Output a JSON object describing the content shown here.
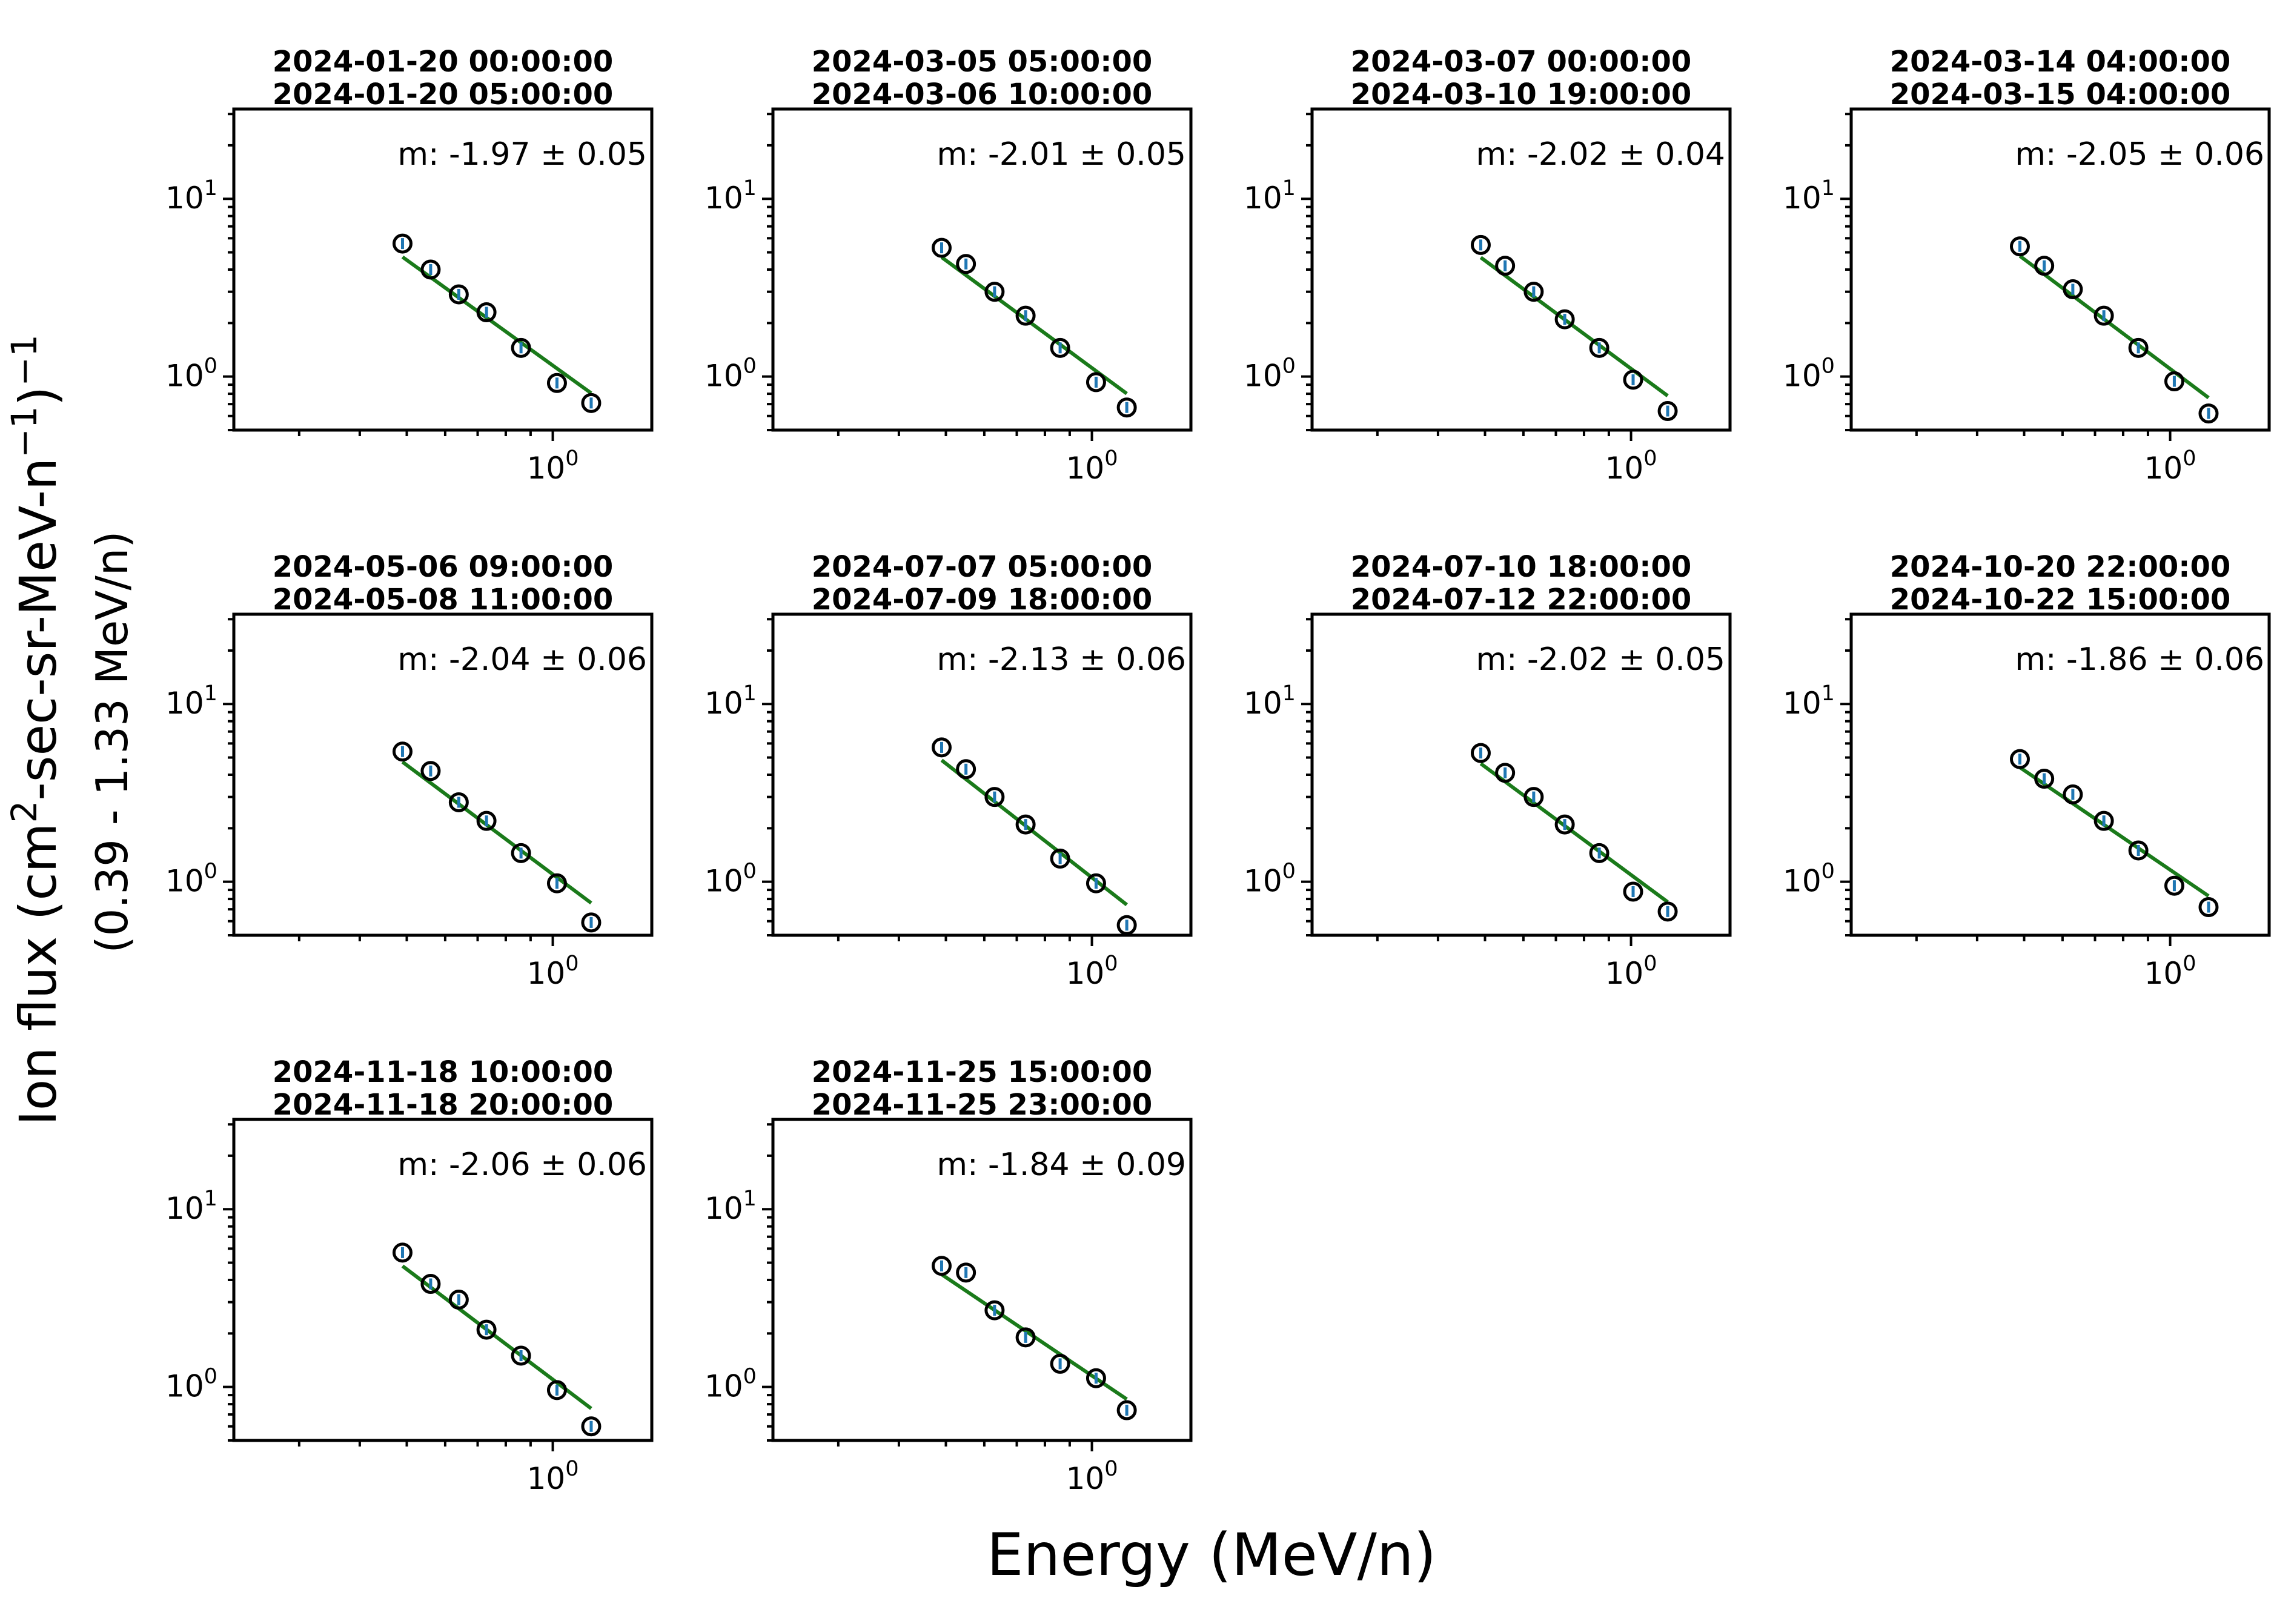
{
  "figure": {
    "ylabel_line1_prefix": "Ion flux (cm",
    "ylabel_sup1": "2",
    "ylabel_mid": "-sec-sr-MeV-n",
    "ylabel_sup2": "−1",
    "ylabel_close": ")",
    "ylabel_sup3": "−1",
    "ylabel_line2": "(0.39 - 1.33 MeV/n)",
    "xlabel": "Energy (MeV/n)"
  },
  "colors": {
    "fit": "#1a7a1a",
    "marker": "#000000",
    "errorbar": "#1f77b4"
  },
  "chart_data": [
    {
      "type": "scatter",
      "title_line1": "2024-01-20 00:00:00",
      "title_line2": "2024-01-20 05:00:00",
      "annotation": "m: -1.97 ± 0.05",
      "slope": -1.97,
      "slope_err": 0.05,
      "x": [
        0.49,
        0.56,
        0.64,
        0.73,
        0.86,
        1.02,
        1.2
      ],
      "y": [
        5.6,
        4.0,
        2.9,
        2.3,
        1.45,
        0.92,
        0.71
      ],
      "xscale": "log",
      "yscale": "log",
      "xlim": [
        0.22,
        1.6
      ],
      "ylim": [
        0.5,
        32
      ],
      "xtick_label": "10",
      "xtick_exp": "0",
      "ytick_labels": [
        {
          "base": "10",
          "exp": "0"
        },
        {
          "base": "10",
          "exp": "1"
        }
      ]
    },
    {
      "type": "scatter",
      "title_line1": "2024-03-05 05:00:00",
      "title_line2": "2024-03-06 10:00:00",
      "annotation": "m: -2.01 ± 0.05",
      "slope": -2.01,
      "slope_err": 0.05,
      "x": [
        0.49,
        0.55,
        0.63,
        0.73,
        0.86,
        1.02,
        1.18
      ],
      "y": [
        5.3,
        4.3,
        3.0,
        2.2,
        1.45,
        0.93,
        0.67
      ],
      "xscale": "log",
      "yscale": "log",
      "xlim": [
        0.22,
        1.6
      ],
      "ylim": [
        0.5,
        32
      ],
      "xtick_label": "10",
      "xtick_exp": "0",
      "ytick_labels": [
        {
          "base": "10",
          "exp": "0"
        },
        {
          "base": "10",
          "exp": "1"
        }
      ]
    },
    {
      "type": "scatter",
      "title_line1": "2024-03-07 00:00:00",
      "title_line2": "2024-03-10 19:00:00",
      "annotation": "m: -2.02 ± 0.04",
      "slope": -2.02,
      "slope_err": 0.04,
      "x": [
        0.49,
        0.55,
        0.63,
        0.73,
        0.86,
        1.01,
        1.19
      ],
      "y": [
        5.5,
        4.2,
        3.0,
        2.1,
        1.45,
        0.96,
        0.64
      ],
      "xscale": "log",
      "yscale": "log",
      "xlim": [
        0.22,
        1.6
      ],
      "ylim": [
        0.5,
        32
      ],
      "xtick_label": "10",
      "xtick_exp": "0",
      "ytick_labels": [
        {
          "base": "10",
          "exp": "0"
        },
        {
          "base": "10",
          "exp": "1"
        }
      ]
    },
    {
      "type": "scatter",
      "title_line1": "2024-03-14 04:00:00",
      "title_line2": "2024-03-15 04:00:00",
      "annotation": "m: -2.05 ± 0.06",
      "slope": -2.05,
      "slope_err": 0.06,
      "x": [
        0.49,
        0.55,
        0.63,
        0.73,
        0.86,
        1.02,
        1.2
      ],
      "y": [
        5.4,
        4.2,
        3.1,
        2.2,
        1.45,
        0.94,
        0.62
      ],
      "xscale": "log",
      "yscale": "log",
      "xlim": [
        0.22,
        1.6
      ],
      "ylim": [
        0.5,
        32
      ],
      "xtick_label": "10",
      "xtick_exp": "0",
      "ytick_labels": [
        {
          "base": "10",
          "exp": "0"
        },
        {
          "base": "10",
          "exp": "1"
        }
      ]
    },
    {
      "type": "scatter",
      "title_line1": "2024-05-06 09:00:00",
      "title_line2": "2024-05-08 11:00:00",
      "annotation": "m: -2.04 ± 0.06",
      "slope": -2.04,
      "slope_err": 0.06,
      "x": [
        0.49,
        0.56,
        0.64,
        0.73,
        0.86,
        1.02,
        1.2
      ],
      "y": [
        5.4,
        4.2,
        2.8,
        2.2,
        1.45,
        0.98,
        0.59
      ],
      "xscale": "log",
      "yscale": "log",
      "xlim": [
        0.22,
        1.6
      ],
      "ylim": [
        0.5,
        32
      ],
      "xtick_label": "10",
      "xtick_exp": "0",
      "ytick_labels": [
        {
          "base": "10",
          "exp": "0"
        },
        {
          "base": "10",
          "exp": "1"
        }
      ]
    },
    {
      "type": "scatter",
      "title_line1": "2024-07-07 05:00:00",
      "title_line2": "2024-07-09 18:00:00",
      "annotation": "m: -2.13 ± 0.06",
      "slope": -2.13,
      "slope_err": 0.06,
      "x": [
        0.49,
        0.55,
        0.63,
        0.73,
        0.86,
        1.02,
        1.18
      ],
      "y": [
        5.7,
        4.3,
        3.0,
        2.1,
        1.35,
        0.98,
        0.57
      ],
      "xscale": "log",
      "yscale": "log",
      "xlim": [
        0.22,
        1.6
      ],
      "ylim": [
        0.5,
        32
      ],
      "xtick_label": "10",
      "xtick_exp": "0",
      "ytick_labels": [
        {
          "base": "10",
          "exp": "0"
        },
        {
          "base": "10",
          "exp": "1"
        }
      ]
    },
    {
      "type": "scatter",
      "title_line1": "2024-07-10 18:00:00",
      "title_line2": "2024-07-12 22:00:00",
      "annotation": "m: -2.02 ± 0.05",
      "slope": -2.02,
      "slope_err": 0.05,
      "x": [
        0.49,
        0.55,
        0.63,
        0.73,
        0.86,
        1.01,
        1.19
      ],
      "y": [
        5.3,
        4.1,
        3.0,
        2.1,
        1.45,
        0.88,
        0.68
      ],
      "xscale": "log",
      "yscale": "log",
      "xlim": [
        0.22,
        1.6
      ],
      "ylim": [
        0.5,
        32
      ],
      "xtick_label": "10",
      "xtick_exp": "0",
      "ytick_labels": [
        {
          "base": "10",
          "exp": "0"
        },
        {
          "base": "10",
          "exp": "1"
        }
      ]
    },
    {
      "type": "scatter",
      "title_line1": "2024-10-20 22:00:00",
      "title_line2": "2024-10-22 15:00:00",
      "annotation": "m: -1.86 ± 0.06",
      "slope": -1.86,
      "slope_err": 0.06,
      "x": [
        0.49,
        0.55,
        0.63,
        0.73,
        0.86,
        1.02,
        1.2
      ],
      "y": [
        4.9,
        3.8,
        3.1,
        2.2,
        1.5,
        0.95,
        0.72
      ],
      "xscale": "log",
      "yscale": "log",
      "xlim": [
        0.22,
        1.6
      ],
      "ylim": [
        0.5,
        32
      ],
      "xtick_label": "10",
      "xtick_exp": "0",
      "ytick_labels": [
        {
          "base": "10",
          "exp": "0"
        },
        {
          "base": "10",
          "exp": "1"
        }
      ]
    },
    {
      "type": "scatter",
      "title_line1": "2024-11-18 10:00:00",
      "title_line2": "2024-11-18 20:00:00",
      "annotation": "m: -2.06 ± 0.06",
      "slope": -2.06,
      "slope_err": 0.06,
      "x": [
        0.49,
        0.56,
        0.64,
        0.73,
        0.86,
        1.02,
        1.2
      ],
      "y": [
        5.7,
        3.8,
        3.1,
        2.1,
        1.5,
        0.96,
        0.6
      ],
      "xscale": "log",
      "yscale": "log",
      "xlim": [
        0.22,
        1.6
      ],
      "ylim": [
        0.5,
        32
      ],
      "xtick_label": "10",
      "xtick_exp": "0",
      "ytick_labels": [
        {
          "base": "10",
          "exp": "0"
        },
        {
          "base": "10",
          "exp": "1"
        }
      ]
    },
    {
      "type": "scatter",
      "title_line1": "2024-11-25 15:00:00",
      "title_line2": "2024-11-25 23:00:00",
      "annotation": "m: -1.84 ± 0.09",
      "slope": -1.84,
      "slope_err": 0.09,
      "x": [
        0.49,
        0.55,
        0.63,
        0.73,
        0.86,
        1.02,
        1.18
      ],
      "y": [
        4.8,
        4.4,
        2.7,
        1.9,
        1.35,
        1.12,
        0.74
      ],
      "xscale": "log",
      "yscale": "log",
      "xlim": [
        0.22,
        1.6
      ],
      "ylim": [
        0.5,
        32
      ],
      "xtick_label": "10",
      "xtick_exp": "0",
      "ytick_labels": [
        {
          "base": "10",
          "exp": "0"
        },
        {
          "base": "10",
          "exp": "1"
        }
      ]
    }
  ]
}
